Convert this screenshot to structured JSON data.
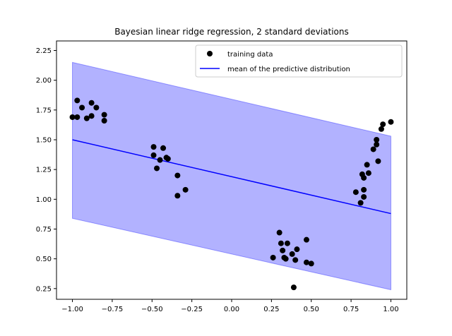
{
  "chart_data": {
    "type": "scatter",
    "title": "Bayesian linear ridge regression, 2 standard deviations",
    "xlabel": "",
    "ylabel": "",
    "xlim": [
      -1.1,
      1.1
    ],
    "ylim": [
      0.16,
      2.33
    ],
    "x_ticks": [
      -1.0,
      -0.75,
      -0.5,
      -0.25,
      0.0,
      0.25,
      0.5,
      0.75,
      1.0
    ],
    "x_tick_labels": [
      "−1.00",
      "−0.75",
      "−0.50",
      "−0.25",
      "0.00",
      "0.25",
      "0.50",
      "0.75",
      "1.00"
    ],
    "y_ticks": [
      0.25,
      0.5,
      0.75,
      1.0,
      1.25,
      1.5,
      1.75,
      2.0,
      2.25
    ],
    "y_tick_labels": [
      "0.25",
      "0.50",
      "0.75",
      "1.00",
      "1.25",
      "1.50",
      "1.75",
      "2.00",
      "2.25"
    ],
    "grid": false,
    "legend_position": "top-right",
    "series": [
      {
        "name": "training data",
        "kind": "scatter",
        "color": "#000000",
        "points": [
          [
            -1.0,
            1.69
          ],
          [
            -0.97,
            1.83
          ],
          [
            -0.97,
            1.69
          ],
          [
            -0.94,
            1.77
          ],
          [
            -0.91,
            1.68
          ],
          [
            -0.88,
            1.81
          ],
          [
            -0.88,
            1.7
          ],
          [
            -0.85,
            1.77
          ],
          [
            -0.8,
            1.71
          ],
          [
            -0.8,
            1.66
          ],
          [
            -0.49,
            1.44
          ],
          [
            -0.49,
            1.37
          ],
          [
            -0.47,
            1.26
          ],
          [
            -0.45,
            1.33
          ],
          [
            -0.43,
            1.43
          ],
          [
            -0.41,
            1.35
          ],
          [
            -0.4,
            1.34
          ],
          [
            -0.34,
            1.2
          ],
          [
            -0.34,
            1.03
          ],
          [
            -0.29,
            1.08
          ],
          [
            0.26,
            0.51
          ],
          [
            0.3,
            0.72
          ],
          [
            0.31,
            0.63
          ],
          [
            0.32,
            0.57
          ],
          [
            0.33,
            0.51
          ],
          [
            0.34,
            0.5
          ],
          [
            0.35,
            0.63
          ],
          [
            0.38,
            0.54
          ],
          [
            0.39,
            0.26
          ],
          [
            0.4,
            0.49
          ],
          [
            0.41,
            0.58
          ],
          [
            0.47,
            0.66
          ],
          [
            0.47,
            0.47
          ],
          [
            0.5,
            0.46
          ],
          [
            0.78,
            1.06
          ],
          [
            0.81,
            0.97
          ],
          [
            0.82,
            1.21
          ],
          [
            0.83,
            1.18
          ],
          [
            0.83,
            1.02
          ],
          [
            0.83,
            1.08
          ],
          [
            0.85,
            1.29
          ],
          [
            0.86,
            1.22
          ],
          [
            0.89,
            1.42
          ],
          [
            0.91,
            1.5
          ],
          [
            0.91,
            1.46
          ],
          [
            0.92,
            1.32
          ],
          [
            0.94,
            1.59
          ],
          [
            0.95,
            1.63
          ],
          [
            1.0,
            1.65
          ]
        ]
      },
      {
        "name": "mean of the predictive distribution",
        "kind": "line",
        "color": "#0000ff",
        "x": [
          -1.0,
          1.0
        ],
        "y": [
          1.5,
          0.88
        ]
      }
    ],
    "band": {
      "kind": "area",
      "color": "#0000ff",
      "opacity": 0.3,
      "x": [
        -1.0,
        1.0
      ],
      "lower": [
        0.84,
        0.24
      ],
      "upper": [
        2.15,
        1.53
      ]
    }
  }
}
